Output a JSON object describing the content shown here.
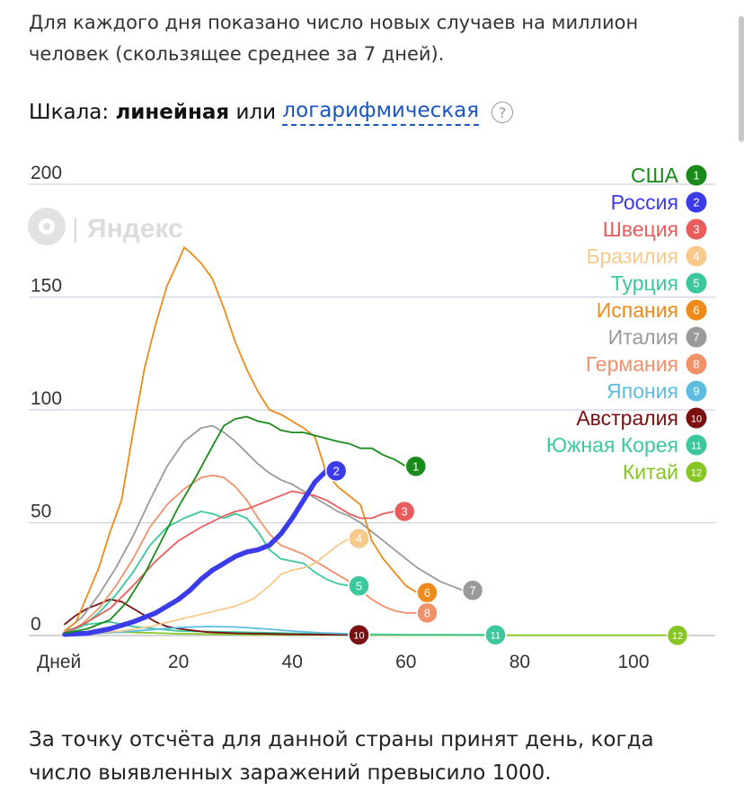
{
  "intro_text": "Для каждого дня показано число новых случаев на миллион человек (скользящее среднее за 7 дней).",
  "scale": {
    "prefix": "Шкала:",
    "current": "линейная",
    "or": "или",
    "alt_link": "логарифмическая",
    "help_glyph": "?"
  },
  "watermark": {
    "text": "Яндекс",
    "separator": "|",
    "icon": "yandex-logo-icon",
    "color": "#d9d9d9"
  },
  "footer_text": "За точку отсчёта для данной страны принят день, когда число выявленных заражений превысило 1000.",
  "chart_data": {
    "type": "line",
    "xlabel": "Дней",
    "xticks": [
      20,
      40,
      60,
      80,
      100
    ],
    "yticks": [
      0,
      50,
      100,
      150,
      200
    ],
    "xlim": [
      0,
      115
    ],
    "ylim": [
      0,
      200
    ],
    "grid": true,
    "legend_position": "right",
    "series": [
      {
        "name": "США",
        "rank": "1",
        "color": "#1a8a1a",
        "points": [
          [
            0,
            1
          ],
          [
            4,
            3
          ],
          [
            8,
            7
          ],
          [
            11,
            15
          ],
          [
            14,
            27
          ],
          [
            17,
            42
          ],
          [
            20,
            57
          ],
          [
            23,
            70
          ],
          [
            26,
            84
          ],
          [
            28,
            93
          ],
          [
            30,
            96
          ],
          [
            32,
            97
          ],
          [
            34,
            95
          ],
          [
            36,
            94
          ],
          [
            38,
            91
          ],
          [
            40,
            90
          ],
          [
            42,
            90
          ],
          [
            45,
            88
          ],
          [
            48,
            86
          ],
          [
            50,
            85
          ],
          [
            52,
            83
          ],
          [
            54,
            83
          ],
          [
            56,
            80
          ],
          [
            58,
            78
          ],
          [
            60,
            75
          ]
        ]
      },
      {
        "name": "Россия",
        "rank": "2",
        "color": "#3b3be8",
        "points": [
          [
            0,
            0.5
          ],
          [
            4,
            1
          ],
          [
            8,
            3
          ],
          [
            12,
            6
          ],
          [
            16,
            10
          ],
          [
            20,
            16
          ],
          [
            22,
            20
          ],
          [
            24,
            25
          ],
          [
            26,
            29
          ],
          [
            28,
            32
          ],
          [
            30,
            35
          ],
          [
            32,
            37
          ],
          [
            34,
            38
          ],
          [
            36,
            40
          ],
          [
            38,
            45
          ],
          [
            40,
            52
          ],
          [
            42,
            60
          ],
          [
            44,
            68
          ],
          [
            46,
            73
          ]
        ]
      },
      {
        "name": "Швеция",
        "rank": "3",
        "color": "#e85c5c",
        "points": [
          [
            0,
            1
          ],
          [
            4,
            6
          ],
          [
            8,
            12
          ],
          [
            12,
            22
          ],
          [
            16,
            33
          ],
          [
            20,
            42
          ],
          [
            24,
            48
          ],
          [
            28,
            53
          ],
          [
            30,
            55
          ],
          [
            32,
            56
          ],
          [
            34,
            58
          ],
          [
            36,
            60
          ],
          [
            38,
            62
          ],
          [
            40,
            64
          ],
          [
            42,
            63
          ],
          [
            44,
            62
          ],
          [
            46,
            60
          ],
          [
            48,
            57
          ],
          [
            50,
            54
          ],
          [
            52,
            52
          ],
          [
            54,
            52
          ],
          [
            56,
            54
          ],
          [
            58,
            55
          ]
        ]
      },
      {
        "name": "Бразилия",
        "rank": "4",
        "color": "#f7c98a",
        "points": [
          [
            0,
            0.5
          ],
          [
            5,
            1
          ],
          [
            10,
            2
          ],
          [
            15,
            4
          ],
          [
            20,
            7
          ],
          [
            25,
            10
          ],
          [
            30,
            13
          ],
          [
            33,
            16
          ],
          [
            36,
            22
          ],
          [
            38,
            27
          ],
          [
            40,
            29
          ],
          [
            42,
            30
          ],
          [
            44,
            32
          ],
          [
            46,
            36
          ],
          [
            48,
            40
          ],
          [
            50,
            43
          ]
        ]
      },
      {
        "name": "Турция",
        "rank": "5",
        "color": "#3cc89c",
        "points": [
          [
            0,
            1
          ],
          [
            3,
            4
          ],
          [
            6,
            10
          ],
          [
            9,
            18
          ],
          [
            12,
            28
          ],
          [
            15,
            40
          ],
          [
            18,
            48
          ],
          [
            21,
            52
          ],
          [
            24,
            55
          ],
          [
            26,
            54
          ],
          [
            28,
            52
          ],
          [
            30,
            54
          ],
          [
            32,
            52
          ],
          [
            34,
            46
          ],
          [
            36,
            38
          ],
          [
            38,
            34
          ],
          [
            40,
            33
          ],
          [
            42,
            32
          ],
          [
            44,
            28
          ],
          [
            46,
            25
          ],
          [
            48,
            23
          ],
          [
            50,
            22
          ]
        ]
      },
      {
        "name": "Испания",
        "rank": "6",
        "color": "#ee8a1a",
        "points": [
          [
            0,
            2
          ],
          [
            2,
            6
          ],
          [
            4,
            18
          ],
          [
            6,
            30
          ],
          [
            8,
            46
          ],
          [
            10,
            60
          ],
          [
            12,
            90
          ],
          [
            14,
            118
          ],
          [
            16,
            138
          ],
          [
            18,
            155
          ],
          [
            20,
            166
          ],
          [
            21,
            172
          ],
          [
            22,
            170
          ],
          [
            24,
            165
          ],
          [
            26,
            158
          ],
          [
            28,
            145
          ],
          [
            30,
            130
          ],
          [
            32,
            118
          ],
          [
            34,
            108
          ],
          [
            36,
            100
          ],
          [
            38,
            98
          ],
          [
            40,
            95
          ],
          [
            42,
            92
          ],
          [
            44,
            88
          ],
          [
            46,
            72
          ],
          [
            48,
            66
          ],
          [
            50,
            62
          ],
          [
            52,
            58
          ],
          [
            54,
            42
          ],
          [
            56,
            34
          ],
          [
            58,
            28
          ],
          [
            60,
            22
          ],
          [
            62,
            19
          ]
        ]
      },
      {
        "name": "Италия",
        "rank": "7",
        "color": "#9a9a9a",
        "points": [
          [
            0,
            2
          ],
          [
            3,
            8
          ],
          [
            6,
            18
          ],
          [
            9,
            30
          ],
          [
            12,
            44
          ],
          [
            15,
            60
          ],
          [
            18,
            75
          ],
          [
            21,
            86
          ],
          [
            24,
            92
          ],
          [
            26,
            93
          ],
          [
            28,
            90
          ],
          [
            30,
            86
          ],
          [
            32,
            81
          ],
          [
            34,
            76
          ],
          [
            36,
            72
          ],
          [
            38,
            69
          ],
          [
            40,
            67
          ],
          [
            42,
            64
          ],
          [
            44,
            61
          ],
          [
            46,
            58
          ],
          [
            48,
            55
          ],
          [
            50,
            53
          ],
          [
            52,
            50
          ],
          [
            54,
            46
          ],
          [
            56,
            42
          ],
          [
            58,
            38
          ],
          [
            60,
            34
          ],
          [
            62,
            30
          ],
          [
            64,
            27
          ],
          [
            66,
            24
          ],
          [
            68,
            22
          ],
          [
            70,
            20
          ]
        ]
      },
      {
        "name": "Германия",
        "rank": "8",
        "color": "#f0916a",
        "points": [
          [
            0,
            1
          ],
          [
            3,
            5
          ],
          [
            6,
            12
          ],
          [
            9,
            22
          ],
          [
            12,
            34
          ],
          [
            15,
            48
          ],
          [
            18,
            58
          ],
          [
            21,
            65
          ],
          [
            24,
            70
          ],
          [
            26,
            71
          ],
          [
            28,
            70
          ],
          [
            30,
            66
          ],
          [
            32,
            60
          ],
          [
            34,
            52
          ],
          [
            36,
            45
          ],
          [
            38,
            40
          ],
          [
            40,
            38
          ],
          [
            42,
            36
          ],
          [
            44,
            33
          ],
          [
            46,
            30
          ],
          [
            48,
            27
          ],
          [
            50,
            24
          ],
          [
            52,
            20
          ],
          [
            54,
            16
          ],
          [
            56,
            13
          ],
          [
            58,
            11
          ],
          [
            60,
            10
          ],
          [
            62,
            10
          ]
        ]
      },
      {
        "name": "Япония",
        "rank": "9",
        "color": "#5bbde0",
        "points": [
          [
            0,
            0.3
          ],
          [
            5,
            0.8
          ],
          [
            10,
            1.5
          ],
          [
            15,
            2.5
          ],
          [
            20,
            3.5
          ],
          [
            25,
            4
          ],
          [
            30,
            3.8
          ],
          [
            35,
            3
          ],
          [
            40,
            2
          ],
          [
            45,
            1.2
          ],
          [
            50,
            0.8
          ]
        ]
      },
      {
        "name": "Австралия",
        "rank": "10",
        "color": "#7a1010",
        "points": [
          [
            0,
            5
          ],
          [
            2,
            9
          ],
          [
            4,
            12
          ],
          [
            6,
            14
          ],
          [
            8,
            16
          ],
          [
            10,
            15
          ],
          [
            12,
            12
          ],
          [
            14,
            9
          ],
          [
            16,
            6
          ],
          [
            18,
            4
          ],
          [
            20,
            3
          ],
          [
            25,
            1.5
          ],
          [
            30,
            1
          ],
          [
            40,
            0.5
          ],
          [
            50,
            0.3
          ]
        ]
      },
      {
        "name": "Южная Корея",
        "rank": "11",
        "color": "#3cc89c",
        "points": [
          [
            0,
            2
          ],
          [
            4,
            5
          ],
          [
            8,
            6
          ],
          [
            12,
            4
          ],
          [
            16,
            3
          ],
          [
            20,
            2
          ],
          [
            30,
            1.5
          ],
          [
            40,
            1
          ],
          [
            50,
            0.6
          ],
          [
            60,
            0.4
          ],
          [
            74,
            0.3
          ]
        ]
      },
      {
        "name": "Китай",
        "rank": "12",
        "color": "#86c726",
        "points": [
          [
            0,
            0.5
          ],
          [
            5,
            1
          ],
          [
            10,
            1.5
          ],
          [
            15,
            1.2
          ],
          [
            20,
            0.8
          ],
          [
            30,
            0.5
          ],
          [
            40,
            0.3
          ],
          [
            60,
            0.2
          ],
          [
            80,
            0.1
          ],
          [
            106,
            0.1
          ]
        ]
      }
    ]
  }
}
